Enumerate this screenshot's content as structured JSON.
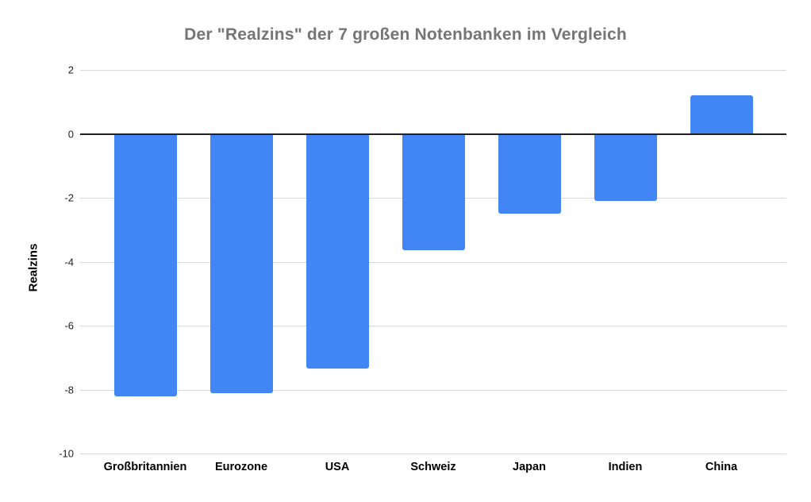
{
  "page": {
    "background": "#ffffff"
  },
  "chart_data": {
    "type": "bar",
    "title": "Der \"Realzins\" der 7 großen Notenbanken im Vergleich",
    "xlabel": "",
    "ylabel": "Realzins",
    "categories": [
      "Großbritannien",
      "Eurozone",
      "USA",
      "Schweiz",
      "Japan",
      "Indien",
      "China"
    ],
    "values": [
      -8.2,
      -8.1,
      -7.35,
      -3.65,
      -2.5,
      -2.1,
      1.2
    ],
    "ylim": [
      -10,
      2
    ],
    "yticks": [
      2,
      0,
      -2,
      -4,
      -6,
      -8,
      -10
    ],
    "grid": "horizontal",
    "legend": "none",
    "colors": {
      "bar": "#4285F4",
      "title": "#757575",
      "gridline": "#d9d9d9",
      "zero_line": "#212121",
      "axis_text": "#1f1f1f",
      "category_text": "#000000"
    }
  }
}
